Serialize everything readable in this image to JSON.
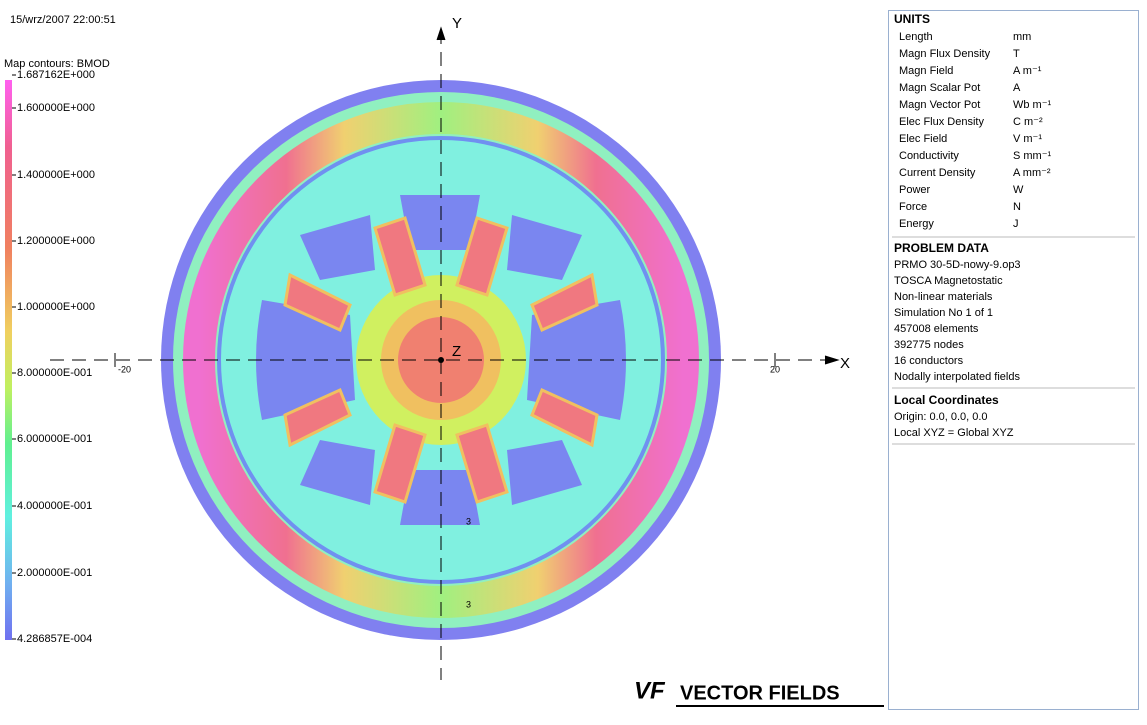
{
  "header": {
    "timestamp": "15/wrz/2007 22:00:51"
  },
  "colorbar": {
    "title": "Map contours: BMOD",
    "labels": [
      "1.687162E+000",
      "1.600000E+000",
      "1.400000E+000",
      "1.200000E+000",
      "1.000000E+000",
      "8.000000E-001",
      "6.000000E-001",
      "4.000000E-001",
      "2.000000E-001",
      "4.286857E-004"
    ]
  },
  "plot": {
    "y_axis": "Y",
    "x_axis": "X",
    "z_axis": "Z",
    "x_tick_left": "-20",
    "x_tick_right": "20",
    "markers": [
      "3",
      "3"
    ]
  },
  "panel": {
    "units": {
      "title": "UNITS",
      "rows": [
        [
          "Length",
          "mm"
        ],
        [
          "Magn Flux Density",
          "T"
        ],
        [
          "Magn Field",
          "A m⁻¹"
        ],
        [
          "Magn Scalar Pot",
          "A"
        ],
        [
          "Magn Vector Pot",
          "Wb m⁻¹"
        ],
        [
          "Elec Flux Density",
          "C m⁻²"
        ],
        [
          "Elec Field",
          "V m⁻¹"
        ],
        [
          "Conductivity",
          "S mm⁻¹"
        ],
        [
          "Current Density",
          "A mm⁻²"
        ],
        [
          "Power",
          "W"
        ],
        [
          "Force",
          "N"
        ],
        [
          "Energy",
          "J"
        ]
      ]
    },
    "problem": {
      "title": "PROBLEM DATA",
      "lines": [
        "PRMO 30-5D-nowy-9.op3",
        "TOSCA Magnetostatic",
        "Non-linear materials",
        "Simulation No 1 of 1",
        "457008 elements",
        "392775 nodes",
        "16 conductors",
        "Nodally interpolated fields"
      ]
    },
    "local": {
      "title": "Local Coordinates",
      "lines": [
        "Origin: 0.0, 0.0, 0.0",
        "Local XYZ = Global XYZ"
      ]
    }
  },
  "logo": {
    "mark": "VF",
    "text": "VECTOR FIELDS"
  }
}
